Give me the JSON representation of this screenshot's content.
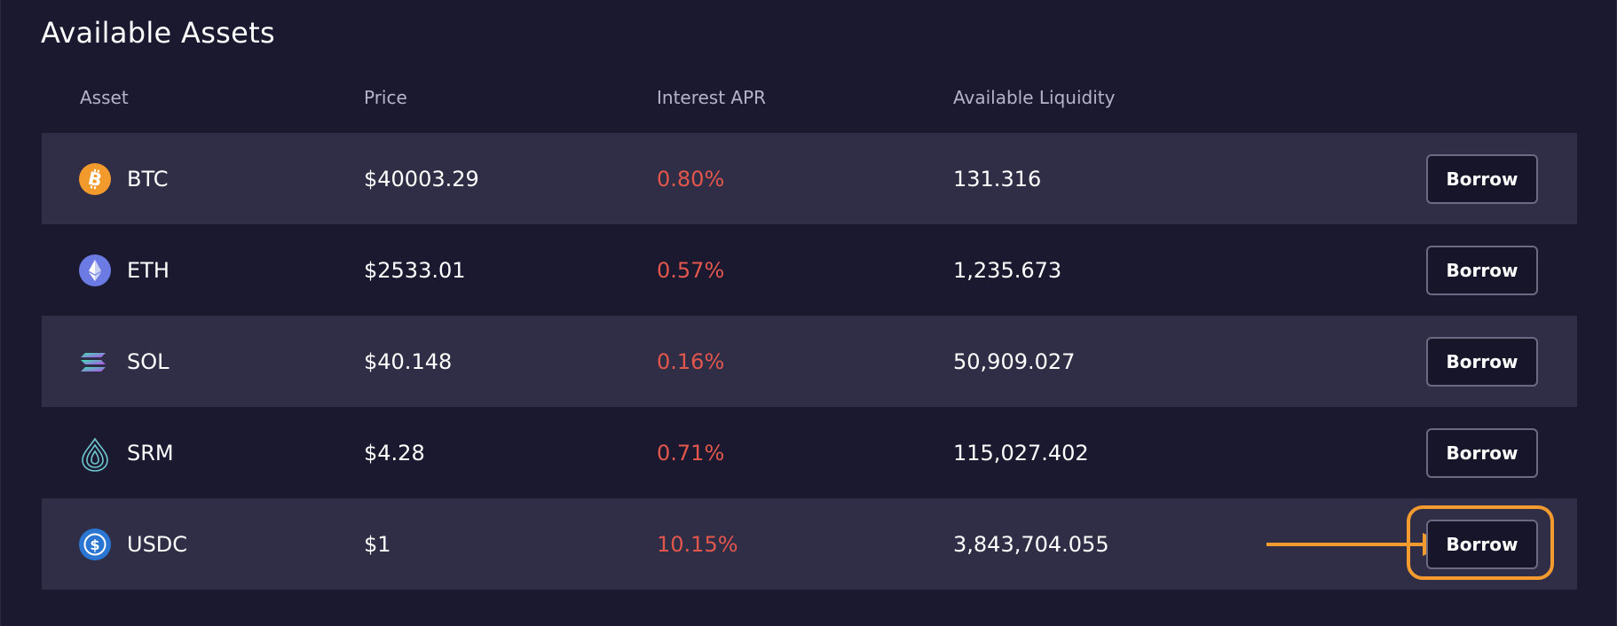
{
  "title": "Available Assets",
  "columns": {
    "asset": "Asset",
    "price": "Price",
    "apr": "Interest APR",
    "liquidity": "Available Liquidity"
  },
  "rows": [
    {
      "symbol": "BTC",
      "price": "$40003.29",
      "apr": "0.80%",
      "liquidity": "131.316",
      "button": "Borrow",
      "icon": "btc-icon"
    },
    {
      "symbol": "ETH",
      "price": "$2533.01",
      "apr": "0.57%",
      "liquidity": "1,235.673",
      "button": "Borrow",
      "icon": "eth-icon"
    },
    {
      "symbol": "SOL",
      "price": "$40.148",
      "apr": "0.16%",
      "liquidity": "50,909.027",
      "button": "Borrow",
      "icon": "sol-icon"
    },
    {
      "symbol": "SRM",
      "price": "$4.28",
      "apr": "0.71%",
      "liquidity": "115,027.402",
      "button": "Borrow",
      "icon": "srm-icon"
    },
    {
      "symbol": "USDC",
      "price": "$1",
      "apr": "10.15%",
      "liquidity": "3,843,704.055",
      "button": "Borrow",
      "icon": "usdc-icon"
    }
  ],
  "colors": {
    "background": "#1b1930",
    "row_alt": "#302d46",
    "apr_red": "#e2574c",
    "highlight_orange": "#f39b2f"
  }
}
